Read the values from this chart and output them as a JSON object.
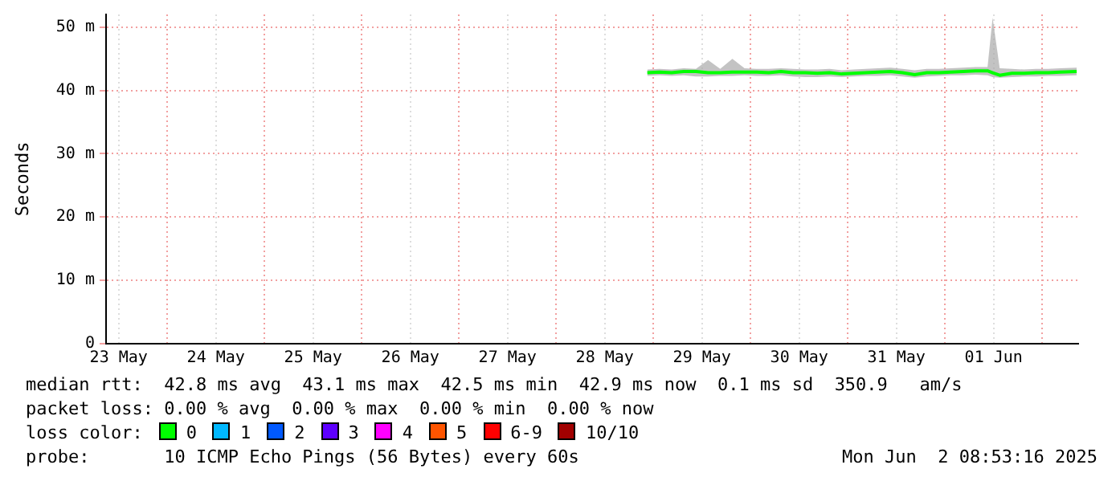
{
  "chart_data": {
    "type": "line",
    "ylabel": "Seconds",
    "legend_title": "loss color:",
    "legend": "bottom",
    "grid": true,
    "marker": "none",
    "line_style": "solid",
    "xlim": [
      "2025-05-23T08:53",
      "2025-06-02T08:53"
    ],
    "xticks": [
      {
        "value": "2025-05-23T12:00",
        "label": "23 May"
      },
      {
        "value": "2025-05-24T00:00",
        "label": null
      },
      {
        "value": "2025-05-24T12:00",
        "label": "24 May"
      },
      {
        "value": "2025-05-25T00:00",
        "label": null
      },
      {
        "value": "2025-05-25T12:00",
        "label": "25 May"
      },
      {
        "value": "2025-05-26T00:00",
        "label": null
      },
      {
        "value": "2025-05-26T12:00",
        "label": "26 May"
      },
      {
        "value": "2025-05-27T00:00",
        "label": null
      },
      {
        "value": "2025-05-27T12:00",
        "label": "27 May"
      },
      {
        "value": "2025-05-28T00:00",
        "label": null
      },
      {
        "value": "2025-05-28T12:00",
        "label": "28 May"
      },
      {
        "value": "2025-05-29T00:00",
        "label": null
      },
      {
        "value": "2025-05-29T12:00",
        "label": "29 May"
      },
      {
        "value": "2025-05-30T00:00",
        "label": null
      },
      {
        "value": "2025-05-30T12:00",
        "label": "30 May"
      },
      {
        "value": "2025-05-31T00:00",
        "label": null
      },
      {
        "value": "2025-05-31T12:00",
        "label": "31 May"
      },
      {
        "value": "2025-06-01T00:00",
        "label": null
      },
      {
        "value": "2025-06-01T12:00",
        "label": "01 Jun"
      },
      {
        "value": "2025-06-02T00:00",
        "label": null
      }
    ],
    "ylim": [
      0,
      52
    ],
    "yticks": [
      0,
      {
        "value": 10,
        "label": "10 m"
      },
      {
        "value": 20,
        "label": "20 m"
      },
      {
        "value": 30,
        "label": "30 m"
      },
      {
        "value": 40,
        "label": "40 m"
      },
      {
        "value": 50,
        "label": "50 m"
      }
    ],
    "x": [
      "2025-05-28T22:30",
      "2025-05-29T01:30",
      "2025-05-29T04:30",
      "2025-05-29T07:30",
      "2025-05-29T10:30",
      "2025-05-29T13:30",
      "2025-05-29T16:30",
      "2025-05-29T19:30",
      "2025-05-29T22:30",
      "2025-05-30T01:30",
      "2025-05-30T04:30",
      "2025-05-30T07:30",
      "2025-05-30T10:30",
      "2025-05-30T13:30",
      "2025-05-30T16:30",
      "2025-05-30T19:30",
      "2025-05-30T22:30",
      "2025-05-31T01:30",
      "2025-05-31T04:30",
      "2025-05-31T07:30",
      "2025-05-31T10:30",
      "2025-05-31T13:30",
      "2025-05-31T16:30",
      "2025-05-31T19:30",
      "2025-05-31T22:30",
      "2025-06-01T01:30",
      "2025-06-01T04:30",
      "2025-06-01T07:30",
      "2025-06-01T10:30",
      "2025-06-01T11:45",
      "2025-06-01T13:30",
      "2025-06-01T16:30",
      "2025-06-01T19:30",
      "2025-06-01T22:30",
      "2025-06-02T01:30",
      "2025-06-02T04:30",
      "2025-06-02T08:30"
    ],
    "series": [
      {
        "name": "0",
        "color": "#00ff00",
        "values": [
          42.8,
          42.9,
          42.8,
          43.0,
          43.0,
          42.8,
          42.8,
          42.9,
          42.9,
          42.9,
          42.8,
          43.0,
          42.8,
          42.8,
          42.7,
          42.8,
          42.6,
          42.7,
          42.8,
          42.9,
          43.0,
          42.8,
          42.5,
          42.8,
          42.8,
          42.9,
          43.0,
          43.1,
          43.1,
          42.8,
          42.4,
          42.7,
          42.7,
          42.8,
          42.8,
          42.9,
          43.0
        ],
        "lower": [
          42.3,
          42.4,
          42.3,
          42.4,
          42.2,
          42.2,
          42.3,
          42.3,
          42.4,
          42.3,
          42.3,
          42.4,
          42.2,
          42.1,
          42.1,
          42.2,
          42.1,
          42.2,
          42.3,
          42.3,
          42.4,
          42.2,
          42.0,
          42.2,
          42.3,
          42.4,
          42.4,
          42.5,
          42.4,
          42.1,
          42.0,
          42.1,
          42.2,
          42.2,
          42.3,
          42.3,
          42.4
        ],
        "upper": [
          43.3,
          43.4,
          43.3,
          43.5,
          43.4,
          44.8,
          43.4,
          45.0,
          43.5,
          43.4,
          43.4,
          43.5,
          43.4,
          43.3,
          43.3,
          43.4,
          43.2,
          43.3,
          43.4,
          43.5,
          43.6,
          43.4,
          43.2,
          43.4,
          43.4,
          43.5,
          43.6,
          43.7,
          43.7,
          51.5,
          43.5,
          43.4,
          43.3,
          43.4,
          43.4,
          43.5,
          43.6
        ]
      },
      {
        "name": "1",
        "color": "#00b8ff",
        "values": [
          null,
          null,
          null,
          null,
          null,
          null,
          null,
          null,
          null,
          null,
          null,
          null,
          null,
          null,
          null,
          null,
          null,
          null,
          null,
          null,
          null,
          null,
          null,
          null,
          null,
          null,
          null,
          null,
          null,
          null,
          null,
          null,
          null,
          null,
          null,
          null,
          null
        ]
      },
      {
        "name": "2",
        "color": "#0059ff",
        "values": [
          null,
          null,
          null,
          null,
          null,
          null,
          null,
          null,
          null,
          null,
          null,
          null,
          null,
          null,
          null,
          null,
          null,
          null,
          null,
          null,
          null,
          null,
          null,
          null,
          null,
          null,
          null,
          null,
          null,
          null,
          null,
          null,
          null,
          null,
          null,
          null,
          null
        ]
      },
      {
        "name": "3",
        "color": "#5e00ff",
        "values": [
          null,
          null,
          null,
          null,
          null,
          null,
          null,
          null,
          null,
          null,
          null,
          null,
          null,
          null,
          null,
          null,
          null,
          null,
          null,
          null,
          null,
          null,
          null,
          null,
          null,
          null,
          null,
          null,
          null,
          null,
          null,
          null,
          null,
          null,
          null,
          null,
          null
        ]
      },
      {
        "name": "4",
        "color": "#ff00ff",
        "values": [
          null,
          null,
          null,
          null,
          null,
          null,
          null,
          null,
          null,
          null,
          null,
          null,
          null,
          null,
          null,
          null,
          null,
          null,
          null,
          null,
          null,
          null,
          null,
          null,
          null,
          null,
          null,
          null,
          null,
          null,
          null,
          null,
          null,
          null,
          null,
          null,
          null
        ]
      },
      {
        "name": "5",
        "color": "#ff5500",
        "values": [
          null,
          null,
          null,
          null,
          null,
          null,
          null,
          null,
          null,
          null,
          null,
          null,
          null,
          null,
          null,
          null,
          null,
          null,
          null,
          null,
          null,
          null,
          null,
          null,
          null,
          null,
          null,
          null,
          null,
          null,
          null,
          null,
          null,
          null,
          null,
          null,
          null
        ]
      },
      {
        "name": "6-9",
        "color": "#ff0000",
        "values": [
          null,
          null,
          null,
          null,
          null,
          null,
          null,
          null,
          null,
          null,
          null,
          null,
          null,
          null,
          null,
          null,
          null,
          null,
          null,
          null,
          null,
          null,
          null,
          null,
          null,
          null,
          null,
          null,
          null,
          null,
          null,
          null,
          null,
          null,
          null,
          null,
          null
        ]
      },
      {
        "name": "10/10",
        "color": "#a10000",
        "values": [
          null,
          null,
          null,
          null,
          null,
          null,
          null,
          null,
          null,
          null,
          null,
          null,
          null,
          null,
          null,
          null,
          null,
          null,
          null,
          null,
          null,
          null,
          null,
          null,
          null,
          null,
          null,
          null,
          null,
          null,
          null,
          null,
          null,
          null,
          null,
          null,
          null
        ]
      }
    ],
    "annotations": [
      "median rtt:  42.8 ms avg  43.1 ms max  42.5 ms min  42.9 ms now  0.1 ms sd  350.9   am/s",
      "packet loss: 0.00 % avg  0.00 % max  0.00 % min  0.00 % now",
      "probe:       10 ICMP Echo Pings (56 Bytes) every 60s",
      "Mon Jun  2 08:53:16 2025"
    ]
  }
}
